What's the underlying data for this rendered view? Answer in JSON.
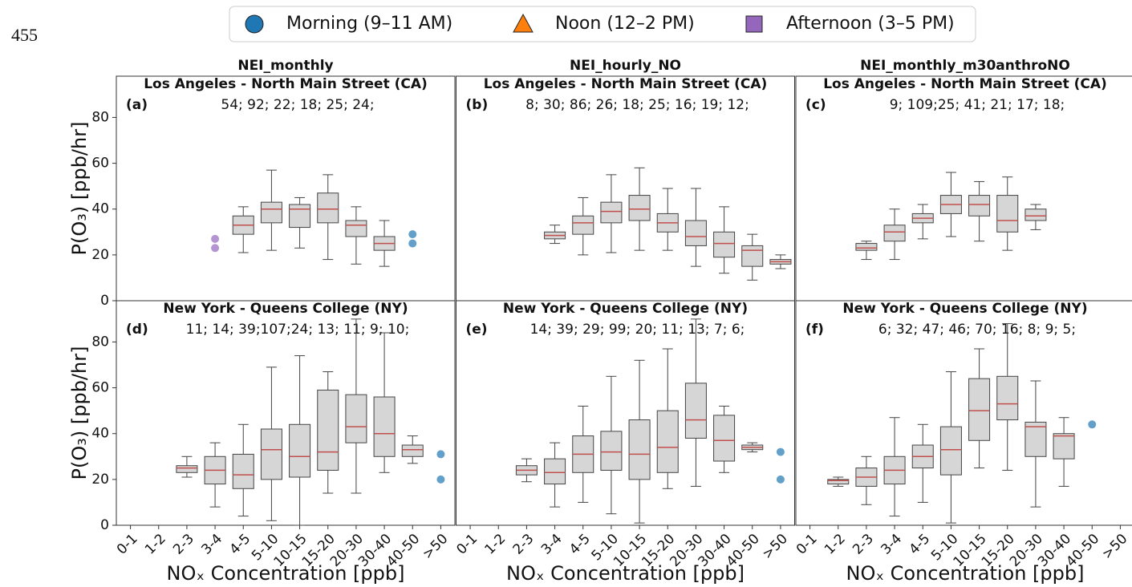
{
  "page_number": "455",
  "legend": [
    {
      "name": "Morning (9–11 AM)",
      "color": "#1f77b4",
      "marker": "circle"
    },
    {
      "name": "Noon (12–2 PM)",
      "color": "#ff7f0e",
      "marker": "triangle"
    },
    {
      "name": "Afternoon (3–5 PM)",
      "color": "#9467bd",
      "marker": "square"
    }
  ],
  "chart_data": [
    {
      "type": "box",
      "title": "NEI_monthly",
      "subtitle": "Los Angeles - North Main Street (CA)",
      "panel_label": "(a)",
      "counts": "54; 92; 22; 18; 25; 24;",
      "ylabel": "P(O₃) [ppb/hr]",
      "ylim": [
        0,
        98
      ],
      "yticks": [
        0,
        20,
        40,
        60,
        80
      ],
      "boxes": [
        {
          "category": "4-5",
          "whislo": 21,
          "q1": 29,
          "med": 33,
          "q3": 37,
          "whishi": 41
        },
        {
          "category": "5-10",
          "whislo": 22,
          "q1": 34,
          "med": 40,
          "q3": 43,
          "whishi": 57
        },
        {
          "category": "10-15",
          "whislo": 23,
          "q1": 32,
          "med": 40,
          "q3": 42,
          "whishi": 45
        },
        {
          "category": "15-20",
          "whislo": 18,
          "q1": 34,
          "med": 40,
          "q3": 47,
          "whishi": 55
        },
        {
          "category": "20-30",
          "whislo": 16,
          "q1": 28,
          "med": 33,
          "q3": 35,
          "whishi": 41
        },
        {
          "category": "30-40",
          "whislo": 15,
          "q1": 22,
          "med": 25,
          "q3": 28,
          "whishi": 35
        }
      ],
      "points": [
        {
          "category": "3-4",
          "value": 27,
          "color": "#9467bd"
        },
        {
          "category": "3-4",
          "value": 23,
          "color": "#9467bd"
        },
        {
          "category": "40-50",
          "value": 29,
          "color": "#1f77b4"
        },
        {
          "category": "40-50",
          "value": 25,
          "color": "#1f77b4"
        }
      ]
    },
    {
      "type": "box",
      "title": "NEI_hourly_NO",
      "subtitle": "Los Angeles - North Main Street (CA)",
      "panel_label": "(b)",
      "counts": "8;  30; 86; 26; 18; 25; 16; 19; 12;",
      "ylim": [
        0,
        98
      ],
      "boxes": [
        {
          "category": "3-4",
          "whislo": 25,
          "q1": 27,
          "med": 28.5,
          "q3": 30,
          "whishi": 33
        },
        {
          "category": "4-5",
          "whislo": 20,
          "q1": 29,
          "med": 34,
          "q3": 37,
          "whishi": 45
        },
        {
          "category": "5-10",
          "whislo": 21,
          "q1": 34,
          "med": 39,
          "q3": 43,
          "whishi": 55
        },
        {
          "category": "10-15",
          "whislo": 22,
          "q1": 35,
          "med": 40,
          "q3": 46,
          "whishi": 58
        },
        {
          "category": "15-20",
          "whislo": 22,
          "q1": 30,
          "med": 34,
          "q3": 38,
          "whishi": 49
        },
        {
          "category": "20-30",
          "whislo": 15,
          "q1": 24,
          "med": 28,
          "q3": 35,
          "whishi": 49
        },
        {
          "category": "30-40",
          "whislo": 12,
          "q1": 19,
          "med": 25,
          "q3": 30,
          "whishi": 41
        },
        {
          "category": "40-50",
          "whislo": 9,
          "q1": 15,
          "med": 22,
          "q3": 24,
          "whishi": 29
        },
        {
          "category": ">50",
          "whislo": 14,
          "q1": 16,
          "med": 17,
          "q3": 18,
          "whishi": 20
        }
      ]
    },
    {
      "type": "box",
      "title": "NEI_monthly_m30anthroNO",
      "subtitle": "Los Angeles - North Main Street (CA)",
      "panel_label": "(c)",
      "counts": "9; 109;25; 41; 21; 17; 18;",
      "ylim": [
        0,
        98
      ],
      "boxes": [
        {
          "category": "2-3",
          "whislo": 18,
          "q1": 22,
          "med": 23,
          "q3": 25,
          "whishi": 26
        },
        {
          "category": "3-4",
          "whislo": 18,
          "q1": 26,
          "med": 30,
          "q3": 33,
          "whishi": 40
        },
        {
          "category": "4-5",
          "whislo": 27,
          "q1": 34,
          "med": 36,
          "q3": 38,
          "whishi": 42
        },
        {
          "category": "5-10",
          "whislo": 28,
          "q1": 38,
          "med": 42,
          "q3": 46,
          "whishi": 56
        },
        {
          "category": "10-15",
          "whislo": 26,
          "q1": 37,
          "med": 42,
          "q3": 46,
          "whishi": 52
        },
        {
          "category": "15-20",
          "whislo": 22,
          "q1": 30,
          "med": 35,
          "q3": 46,
          "whishi": 54
        },
        {
          "category": "20-30",
          "whislo": 31,
          "q1": 35,
          "med": 37,
          "q3": 40,
          "whishi": 42
        }
      ]
    },
    {
      "type": "box",
      "subtitle": "New York - Queens College (NY)",
      "panel_label": "(d)",
      "counts": "11; 14; 39;107;24; 13; 11;  9;  10;",
      "ylabel": "P(O₃) [ppb/hr]",
      "xlabel": "NOₓ Concentration [ppb]",
      "ylim": [
        0,
        98
      ],
      "yticks": [
        0,
        20,
        40,
        60,
        80
      ],
      "categories": [
        "0-1",
        "1-2",
        "2-3",
        "3-4",
        "4-5",
        "5-10",
        "10-15",
        "15-20",
        "20-30",
        "30-40",
        "40-50",
        ">50"
      ],
      "boxes": [
        {
          "category": "2-3",
          "whislo": 21,
          "q1": 23,
          "med": 25,
          "q3": 26,
          "whishi": 30
        },
        {
          "category": "3-4",
          "whislo": 8,
          "q1": 18,
          "med": 24,
          "q3": 30,
          "whishi": 36
        },
        {
          "category": "4-5",
          "whislo": 4,
          "q1": 16,
          "med": 22,
          "q3": 31,
          "whishi": 44
        },
        {
          "category": "5-10",
          "whislo": 2,
          "q1": 20,
          "med": 33,
          "q3": 42,
          "whishi": 69
        },
        {
          "category": "10-15",
          "whislo": 0,
          "q1": 21,
          "med": 30,
          "q3": 44,
          "whishi": 74
        },
        {
          "category": "15-20",
          "whislo": 14,
          "q1": 24,
          "med": 32,
          "q3": 59,
          "whishi": 67
        },
        {
          "category": "20-30",
          "whislo": 14,
          "q1": 36,
          "med": 43,
          "q3": 57,
          "whishi": 90
        },
        {
          "category": "30-40",
          "whislo": 23,
          "q1": 30,
          "med": 40,
          "q3": 56,
          "whishi": 84
        },
        {
          "category": "40-50",
          "whislo": 27,
          "q1": 30,
          "med": 33,
          "q3": 35,
          "whishi": 39
        }
      ],
      "points": [
        {
          "category": ">50",
          "value": 31,
          "color": "#1f77b4"
        },
        {
          "category": ">50",
          "value": 20,
          "color": "#1f77b4"
        }
      ]
    },
    {
      "type": "box",
      "subtitle": "New York - Queens College (NY)",
      "panel_label": "(e)",
      "counts": "14; 39; 29; 99; 20; 11; 13;  7;   6;",
      "xlabel": "NOₓ Concentration [ppb]",
      "ylim": [
        0,
        98
      ],
      "categories": [
        "0-1",
        "1-2",
        "2-3",
        "3-4",
        "4-5",
        "5-10",
        "10-15",
        "15-20",
        "20-30",
        "30-40",
        "40-50",
        ">50"
      ],
      "boxes": [
        {
          "category": "2-3",
          "whislo": 19,
          "q1": 22,
          "med": 24,
          "q3": 26,
          "whishi": 29
        },
        {
          "category": "3-4",
          "whislo": 8,
          "q1": 18,
          "med": 23,
          "q3": 29,
          "whishi": 36
        },
        {
          "category": "4-5",
          "whislo": 10,
          "q1": 23,
          "med": 31,
          "q3": 39,
          "whishi": 52
        },
        {
          "category": "5-10",
          "whislo": 5,
          "q1": 24,
          "med": 32,
          "q3": 41,
          "whishi": 65
        },
        {
          "category": "10-15",
          "whislo": 1,
          "q1": 20,
          "med": 31,
          "q3": 46,
          "whishi": 72
        },
        {
          "category": "15-20",
          "whislo": 16,
          "q1": 23,
          "med": 34,
          "q3": 50,
          "whishi": 77
        },
        {
          "category": "20-30",
          "whislo": 17,
          "q1": 38,
          "med": 46,
          "q3": 62,
          "whishi": 90
        },
        {
          "category": "30-40",
          "whislo": 23,
          "q1": 28,
          "med": 37,
          "q3": 48,
          "whishi": 52
        },
        {
          "category": "40-50",
          "whislo": 32,
          "q1": 33,
          "med": 34,
          "q3": 35,
          "whishi": 36
        }
      ],
      "points": [
        {
          "category": ">50",
          "value": 32,
          "color": "#1f77b4"
        },
        {
          "category": ">50",
          "value": 20,
          "color": "#1f77b4"
        }
      ]
    },
    {
      "type": "box",
      "subtitle": "New York - Queens College (NY)",
      "panel_label": "(f)",
      "counts": "6;  32; 47; 46; 70; 16;  8;    9;    5;",
      "xlabel": "NOₓ Concentration [ppb]",
      "ylim": [
        0,
        98
      ],
      "categories": [
        "0-1",
        "1-2",
        "2-3",
        "3-4",
        "4-5",
        "5-10",
        "10-15",
        "15-20",
        "20-30",
        "30-40",
        "40-50",
        ">50"
      ],
      "boxes": [
        {
          "category": "1-2",
          "whislo": 17,
          "q1": 18,
          "med": 19.5,
          "q3": 20,
          "whishi": 21
        },
        {
          "category": "2-3",
          "whislo": 9,
          "q1": 17,
          "med": 21,
          "q3": 25,
          "whishi": 30
        },
        {
          "category": "3-4",
          "whislo": 4,
          "q1": 18,
          "med": 24,
          "q3": 30,
          "whishi": 47
        },
        {
          "category": "4-5",
          "whislo": 10,
          "q1": 25,
          "med": 30,
          "q3": 35,
          "whishi": 44
        },
        {
          "category": "5-10",
          "whislo": 1,
          "q1": 22,
          "med": 33,
          "q3": 43,
          "whishi": 67
        },
        {
          "category": "10-15",
          "whislo": 25,
          "q1": 37,
          "med": 50,
          "q3": 64,
          "whishi": 77
        },
        {
          "category": "15-20",
          "whislo": 24,
          "q1": 46,
          "med": 53,
          "q3": 65,
          "whishi": 88
        },
        {
          "category": "20-30",
          "whislo": 8,
          "q1": 30,
          "med": 43,
          "q3": 45,
          "whishi": 63
        },
        {
          "category": "30-40",
          "whislo": 17,
          "q1": 29,
          "med": 39,
          "q3": 40,
          "whishi": 47
        }
      ],
      "points": [
        {
          "category": "40-50",
          "value": 44,
          "color": "#1f77b4"
        }
      ]
    }
  ]
}
